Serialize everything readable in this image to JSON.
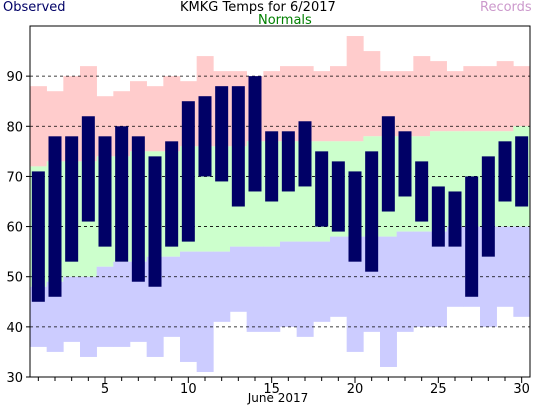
{
  "header": {
    "title": "KMKG Temps for 6/2017",
    "observed_label": "Observed",
    "normals_label": "Normals",
    "records_label": "Records"
  },
  "colors": {
    "observed": "#000066",
    "normals_band": "#ccffcc",
    "records_high": "#ffcccc",
    "records_low": "#ccccff",
    "normals_text": "#008000",
    "records_text": "#cc99cc",
    "observed_text": "#000066",
    "grid": "#000000"
  },
  "chart_data": {
    "type": "bar",
    "title": "KMKG Temps for 6/2017",
    "xlabel": "June 2017",
    "ylabel": "",
    "x": [
      1,
      2,
      3,
      4,
      5,
      6,
      7,
      8,
      9,
      10,
      11,
      12,
      13,
      14,
      15,
      16,
      17,
      18,
      19,
      20,
      21,
      22,
      23,
      24,
      25,
      26,
      27,
      28,
      29,
      30
    ],
    "xlim": [
      0.5,
      30.5
    ],
    "ylim": [
      30,
      100
    ],
    "y_ticks": [
      30,
      40,
      50,
      60,
      70,
      80,
      90
    ],
    "x_ticks": [
      5,
      10,
      15,
      20,
      25,
      30
    ],
    "grid": "dashed horizontal lines at 40, 50, 60, 70, 80, 90",
    "series": [
      {
        "name": "Observed",
        "kind": "range-bar",
        "low": [
          45,
          46,
          53,
          61,
          56,
          53,
          49,
          48,
          56,
          57,
          70,
          69,
          64,
          67,
          65,
          67,
          68,
          60,
          59,
          53,
          51,
          63,
          66,
          61,
          56,
          56,
          46,
          54,
          65,
          64
        ],
        "high": [
          71,
          78,
          78,
          82,
          78,
          80,
          78,
          74,
          77,
          85,
          86,
          88,
          88,
          90,
          79,
          79,
          81,
          75,
          73,
          71,
          75,
          82,
          79,
          73,
          68,
          67,
          70,
          74,
          77,
          78
        ]
      },
      {
        "name": "Normals",
        "kind": "band",
        "low": [
          48,
          49,
          50,
          50,
          52,
          53,
          53,
          54,
          54,
          55,
          55,
          55,
          56,
          56,
          56,
          57,
          57,
          57,
          58,
          58,
          58,
          58,
          59,
          59,
          59,
          60,
          60,
          60,
          60,
          60
        ],
        "high": [
          72,
          73,
          73,
          73,
          74,
          74,
          75,
          75,
          75,
          76,
          76,
          76,
          76,
          77,
          77,
          77,
          77,
          77,
          77,
          77,
          78,
          78,
          78,
          78,
          79,
          79,
          79,
          79,
          79,
          80
        ]
      },
      {
        "name": "Records",
        "kind": "band",
        "low": [
          36,
          35,
          37,
          34,
          36,
          36,
          37,
          34,
          38,
          33,
          31,
          41,
          43,
          39,
          39,
          40,
          38,
          41,
          42,
          35,
          39,
          32,
          39,
          40,
          40,
          44,
          44,
          40,
          44,
          42
        ],
        "high": [
          88,
          87,
          90,
          92,
          86,
          87,
          89,
          88,
          90,
          89,
          94,
          91,
          91,
          90,
          91,
          92,
          92,
          91,
          92,
          98,
          95,
          91,
          91,
          94,
          93,
          91,
          92,
          92,
          93,
          92
        ]
      }
    ]
  }
}
